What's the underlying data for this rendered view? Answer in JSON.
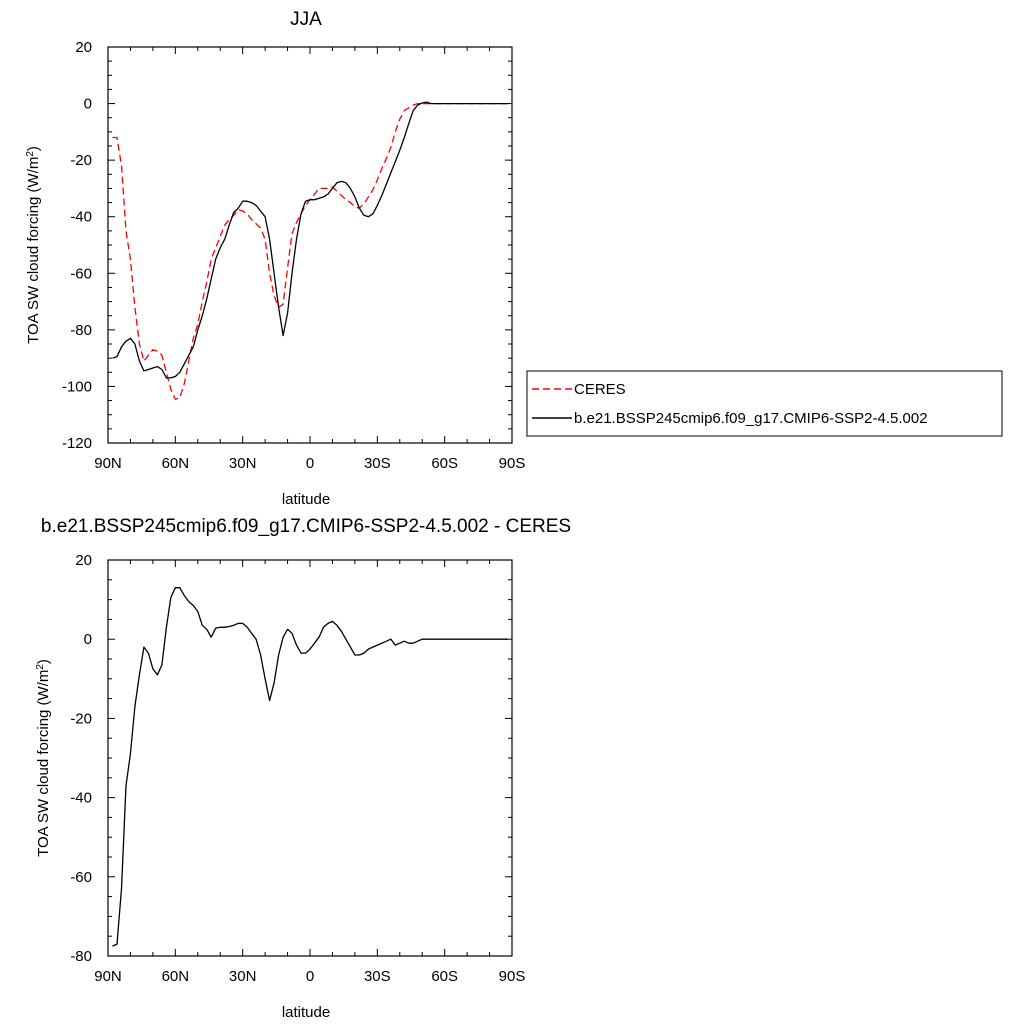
{
  "chart_data": [
    {
      "type": "line",
      "title": "JJA",
      "xlabel": "latitude",
      "ylabel": "TOA SW cloud forcing (W/m",
      "ylabel_sup": "2",
      "ylabel_end": ")",
      "xlim": [
        90,
        -90
      ],
      "ylim": [
        -120,
        20
      ],
      "xticks": [
        90,
        60,
        30,
        0,
        -30,
        -60,
        -90
      ],
      "xtick_labels": [
        "90N",
        "60N",
        "30N",
        "0",
        "30S",
        "60S",
        "90S"
      ],
      "yticks": [
        20,
        0,
        -20,
        -40,
        -60,
        -80,
        -100,
        -120
      ],
      "ytick_labels": [
        "20",
        "0",
        "-20",
        "-40",
        "-60",
        "-80",
        "-100",
        "-120"
      ],
      "legend_position": "outside-right",
      "series": [
        {
          "name": "CERES",
          "color": "#ff0000",
          "dash": "dashed",
          "x": [
            88,
            86,
            84,
            82,
            80,
            78,
            76,
            74,
            72,
            70,
            68,
            66,
            64,
            62,
            60,
            58,
            56,
            54,
            52,
            50,
            48,
            46,
            44,
            42,
            40,
            38,
            36,
            34,
            32,
            30,
            28,
            26,
            24,
            22,
            20,
            18,
            16,
            14,
            12,
            10,
            8,
            6,
            4,
            2,
            0,
            -2,
            -4,
            -6,
            -8,
            -10,
            -12,
            -14,
            -16,
            -18,
            -20,
            -22,
            -24,
            -26,
            -28,
            -30,
            -32,
            -34,
            -36,
            -38,
            -40,
            -42,
            -44,
            -46,
            -48,
            -50,
            -52,
            -54,
            -56,
            -58,
            -60,
            -62,
            -64,
            -66,
            -68,
            -70,
            -72,
            -74,
            -76,
            -78,
            -80,
            -82,
            -84,
            -86,
            -88
          ],
          "y": [
            -12,
            -12,
            -22,
            -45,
            -55,
            -72,
            -85,
            -91,
            -89,
            -87,
            -87.5,
            -89,
            -95,
            -101,
            -104.5,
            -104,
            -99,
            -91,
            -83,
            -78,
            -70,
            -63,
            -55,
            -51,
            -47,
            -43,
            -41,
            -39.5,
            -37.5,
            -38,
            -39,
            -41,
            -42.5,
            -44,
            -48,
            -60,
            -68,
            -72,
            -71,
            -58,
            -46,
            -42,
            -39,
            -36,
            -34,
            -32,
            -30,
            -30,
            -30,
            -29.5,
            -31,
            -32.5,
            -34,
            -35,
            -36.5,
            -37,
            -35.5,
            -33,
            -30.5,
            -27,
            -23,
            -19.5,
            -15.5,
            -10,
            -5.5,
            -2.5,
            -1.5,
            -0.5,
            0,
            0,
            0,
            0,
            0,
            0,
            0,
            0,
            0,
            0,
            0,
            0,
            0,
            0,
            0,
            0,
            0,
            0,
            0,
            0,
            0
          ]
        },
        {
          "name": "b.e21.BSSP245cmip6.f09_g17.CMIP6-SSP2-4.5.002",
          "color": "#000000",
          "dash": "solid",
          "x": [
            88,
            86,
            84,
            82,
            80,
            78,
            76,
            74,
            72,
            70,
            68,
            66,
            64,
            62,
            60,
            58,
            56,
            54,
            52,
            50,
            48,
            46,
            44,
            42,
            40,
            38,
            36,
            34,
            32,
            30,
            28,
            26,
            24,
            22,
            20,
            18,
            16,
            14,
            12,
            10,
            8,
            6,
            4,
            2,
            0,
            -2,
            -4,
            -6,
            -8,
            -10,
            -12,
            -14,
            -16,
            -18,
            -20,
            -22,
            -24,
            -26,
            -28,
            -30,
            -32,
            -34,
            -36,
            -38,
            -40,
            -42,
            -44,
            -46,
            -48,
            -50,
            -52,
            -54,
            -56,
            -58,
            -60,
            -62,
            -64,
            -66,
            -68,
            -70,
            -72,
            -74,
            -76,
            -78,
            -80,
            -82,
            -84,
            -86,
            -88
          ],
          "y": [
            -90,
            -89.5,
            -86,
            -84,
            -83,
            -85,
            -91,
            -94.5,
            -94,
            -93.5,
            -93,
            -94,
            -97,
            -97,
            -96.5,
            -95,
            -92,
            -89,
            -86,
            -80,
            -75,
            -69,
            -62,
            -55,
            -51,
            -48,
            -43,
            -38.5,
            -37,
            -34.5,
            -34.5,
            -35,
            -36,
            -38,
            -40,
            -48,
            -60,
            -72,
            -82,
            -74,
            -60,
            -48,
            -39,
            -34.5,
            -34,
            -34,
            -33.5,
            -33,
            -32,
            -30,
            -28,
            -27.5,
            -28,
            -30,
            -33,
            -37,
            -39.5,
            -40,
            -39,
            -36,
            -32.5,
            -28.5,
            -24.5,
            -20.5,
            -16.5,
            -12,
            -7,
            -2.5,
            -0.5,
            0.2,
            0.5,
            0,
            0,
            0,
            0,
            0,
            0,
            0,
            0,
            0,
            0,
            0,
            0,
            0,
            0,
            0,
            0,
            0,
            0
          ]
        }
      ]
    },
    {
      "type": "line",
      "title": "b.e21.BSSP245cmip6.f09_g17.CMIP6-SSP2-4.5.002 - CERES",
      "xlabel": "latitude",
      "ylabel": "TOA SW cloud forcing (W/m",
      "ylabel_sup": "2",
      "ylabel_end": ")",
      "xlim": [
        90,
        -90
      ],
      "ylim": [
        -80,
        20
      ],
      "xticks": [
        90,
        60,
        30,
        0,
        -30,
        -60,
        -90
      ],
      "xtick_labels": [
        "90N",
        "60N",
        "30N",
        "0",
        "30S",
        "60S",
        "90S"
      ],
      "yticks": [
        20,
        0,
        -20,
        -40,
        -60,
        -80
      ],
      "ytick_labels": [
        "20",
        "0",
        "-20",
        "-40",
        "-60",
        "-80"
      ],
      "series": [
        {
          "color": "#000000",
          "dash": "solid",
          "x": [
            88,
            86,
            84,
            82,
            80,
            78,
            76,
            74,
            72,
            70,
            68,
            66,
            64,
            62,
            60,
            58,
            56,
            54,
            52,
            50,
            48,
            46,
            44,
            42,
            40,
            38,
            36,
            34,
            32,
            30,
            28,
            26,
            24,
            22,
            20,
            18,
            16,
            14,
            12,
            10,
            8,
            6,
            4,
            2,
            0,
            -2,
            -4,
            -6,
            -8,
            -10,
            -12,
            -14,
            -16,
            -18,
            -20,
            -22,
            -24,
            -26,
            -28,
            -30,
            -32,
            -34,
            -36,
            -38,
            -40,
            -42,
            -44,
            -46,
            -48,
            -50,
            -52,
            -54,
            -56,
            -58,
            -60,
            -62,
            -64,
            -66,
            -68,
            -70,
            -72,
            -74,
            -76,
            -78,
            -80,
            -82,
            -84,
            -86,
            -88
          ],
          "y": [
            -77.5,
            -77,
            -63,
            -37,
            -29,
            -17,
            -9,
            -2,
            -3.5,
            -7.5,
            -9,
            -6.5,
            3,
            10.5,
            13,
            13,
            11,
            9.5,
            8.5,
            7,
            3.5,
            2.5,
            0.5,
            2.8,
            3,
            3,
            3.2,
            3.5,
            4,
            4,
            3,
            1.5,
            0,
            -4,
            -10,
            -15.5,
            -11,
            -4,
            0.5,
            2.5,
            1.5,
            -1.5,
            -3.5,
            -3.5,
            -2.5,
            -1,
            0.5,
            3,
            4,
            4.5,
            3.5,
            2,
            0,
            -2,
            -4,
            -4,
            -3.5,
            -2.5,
            -2,
            -1.5,
            -1,
            -0.5,
            0,
            -1.5,
            -1,
            -0.5,
            -1,
            -1,
            -0.5,
            0,
            0,
            0,
            0,
            0,
            0,
            0,
            0,
            0,
            0,
            0,
            0,
            0,
            0,
            0,
            0,
            0,
            0,
            0,
            0
          ]
        }
      ]
    }
  ]
}
